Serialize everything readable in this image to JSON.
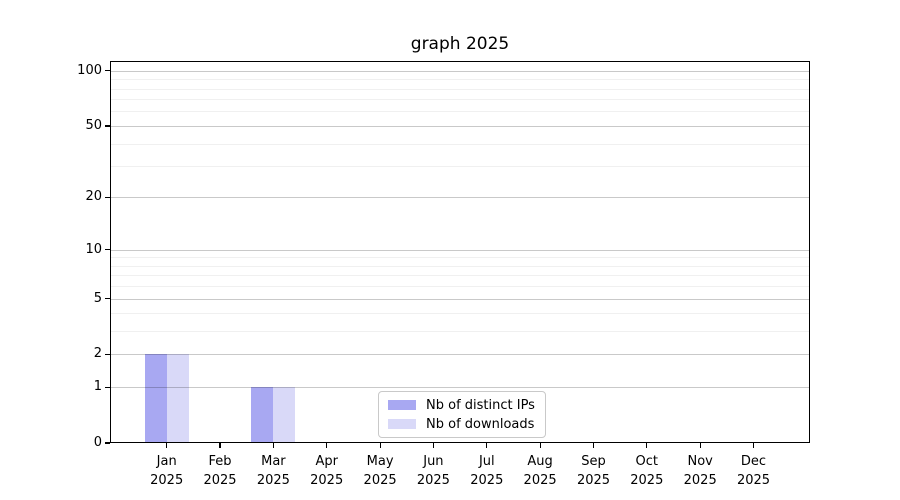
{
  "chart_data": {
    "type": "bar",
    "title": "graph 2025",
    "categories": [
      "Jan",
      "Feb",
      "Mar",
      "Apr",
      "May",
      "Jun",
      "Jul",
      "Aug",
      "Sep",
      "Oct",
      "Nov",
      "Dec"
    ],
    "category_year": "2025",
    "series": [
      {
        "name": "Nb of distinct IPs",
        "color": "#a8a8f2",
        "values": [
          2,
          0,
          1,
          0,
          0,
          0,
          0,
          0,
          0,
          0,
          0,
          0
        ]
      },
      {
        "name": "Nb of downloads",
        "color": "#d9d9f8",
        "values": [
          2,
          0,
          1,
          0,
          0,
          0,
          0,
          0,
          0,
          0,
          0,
          0
        ]
      }
    ],
    "xlabel": "",
    "ylabel": "",
    "y_scale": "log1p",
    "y_major_ticks": [
      0,
      1,
      2,
      5,
      10,
      20,
      50,
      100
    ],
    "y_minor_ticks": [
      3,
      4,
      6,
      7,
      8,
      9,
      30,
      40,
      60,
      70,
      80,
      90
    ],
    "ylim": [
      0,
      113
    ],
    "grid": "horizontal",
    "legend_position": "lower center"
  }
}
